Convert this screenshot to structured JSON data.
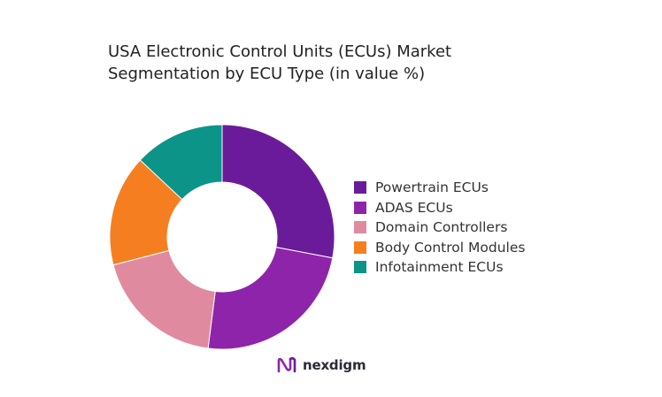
{
  "title_lines": [
    "USA Electronic Control Units (ECUs) Market",
    "Segmentation by ECU Type (in value %)"
  ],
  "chart_data": {
    "type": "donut",
    "title": "USA Electronic Control Units (ECUs) Market Segmentation by ECU Type (in value %)",
    "categories": [
      "Powertrain ECUs",
      "ADAS ECUs",
      "Domain Controllers",
      "Body Control Modules",
      "Infotainment ECUs"
    ],
    "values": [
      28,
      24,
      19,
      16,
      13
    ],
    "unit": "%",
    "colors": [
      "#6a1b9a",
      "#8e24aa",
      "#e08aa0",
      "#f57f20",
      "#0d9488"
    ],
    "legend_position": "right",
    "start_angle_deg": 0,
    "direction": "clockwise"
  },
  "brand": {
    "name": "nexdigm",
    "icon": "nexdigm-logo-icon"
  }
}
